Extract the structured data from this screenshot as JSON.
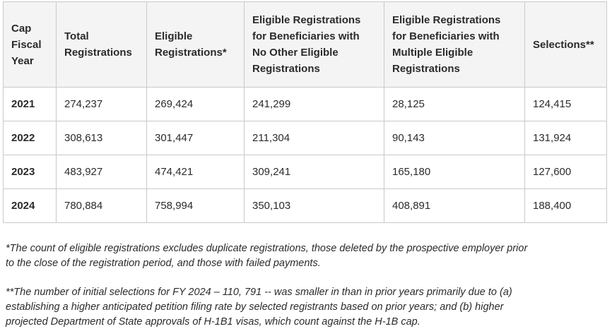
{
  "table": {
    "headers": [
      [
        "Cap",
        "Fiscal",
        "Year"
      ],
      [
        "Total",
        "Registrations"
      ],
      [
        "Eligible",
        "Registrations*"
      ],
      [
        "Eligible Registrations",
        "for Beneficiaries with",
        "No Other Eligible",
        "Registrations"
      ],
      [
        "Eligible Registrations",
        "for Beneficiaries with",
        "Multiple Eligible",
        "Registrations"
      ],
      [
        "Selections**"
      ]
    ],
    "rows": [
      [
        "2021",
        "274,237",
        "269,424",
        "241,299",
        "28,125",
        "124,415"
      ],
      [
        "2022",
        "308,613",
        "301,447",
        "211,304",
        "90,143",
        "131,924"
      ],
      [
        "2023",
        "483,927",
        "474,421",
        "309,241",
        "165,180",
        "127,600"
      ],
      [
        "2024",
        "780,884",
        "758,994",
        "350,103",
        "408,891",
        "188,400"
      ]
    ]
  },
  "footnotes": {
    "note1": [
      "*The count of eligible registrations excludes duplicate registrations, those deleted by the prospective employer prior",
      "to the close of the registration period, and those with failed payments."
    ],
    "note2": [
      "**The number of initial selections for FY 2024 – 110, 791 -- was smaller in than in prior years primarily due to (a)",
      "establishing a higher anticipated petition filing rate by selected registrants based on prior years; and (b) higher",
      "projected Department of State approvals of H-1B1 visas, which count against the H-1B cap."
    ]
  }
}
